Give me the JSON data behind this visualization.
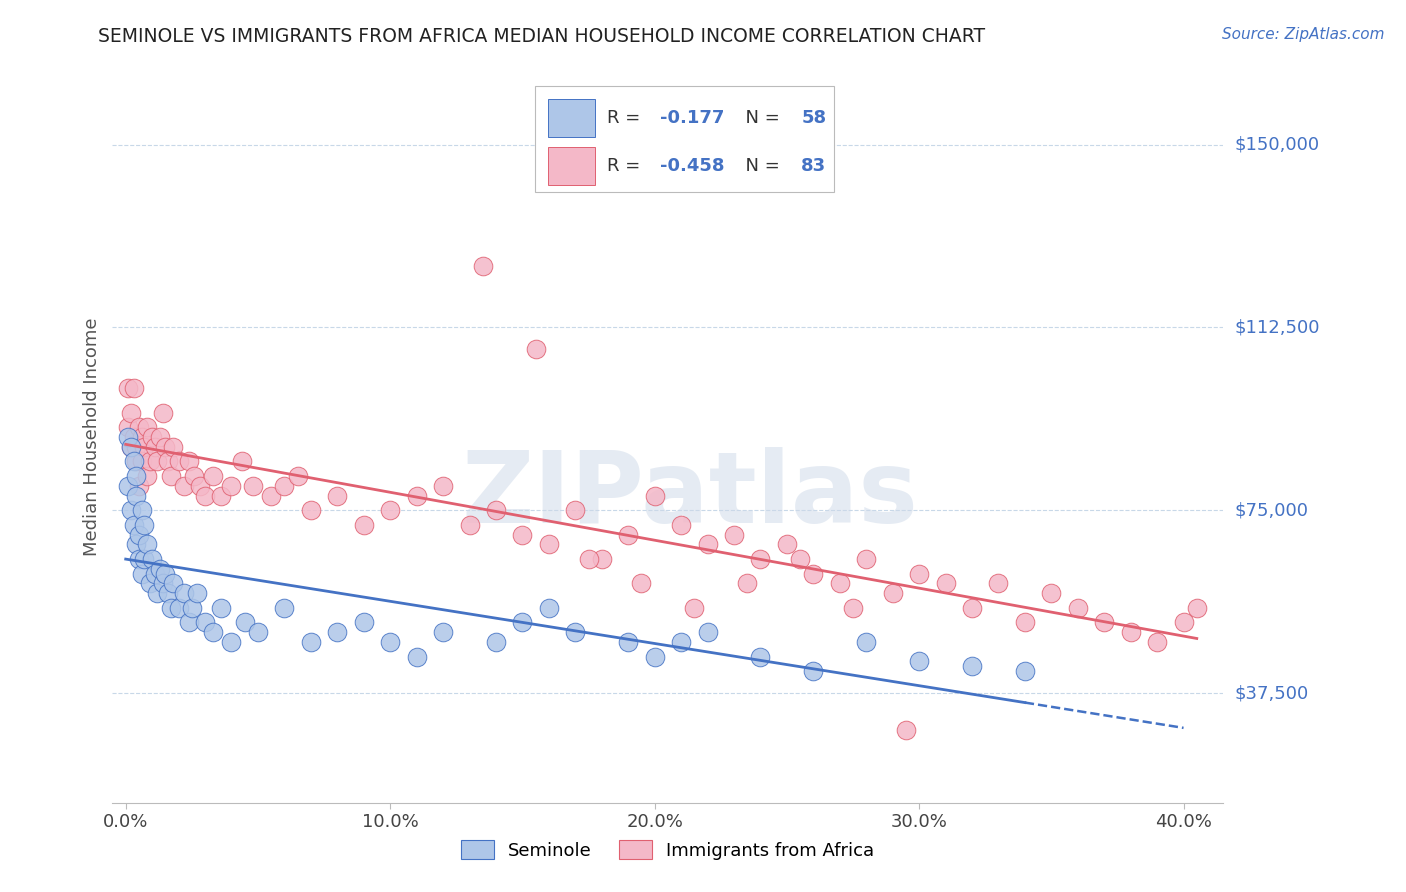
{
  "title": "SEMINOLE VS IMMIGRANTS FROM AFRICA MEDIAN HOUSEHOLD INCOME CORRELATION CHART",
  "source": "Source: ZipAtlas.com",
  "ylabel": "Median Household Income",
  "x_tick_labels": [
    "0.0%",
    "10.0%",
    "20.0%",
    "30.0%",
    "40.0%"
  ],
  "x_tick_positions": [
    0.0,
    0.1,
    0.2,
    0.3,
    0.4
  ],
  "y_tick_labels": [
    "$37,500",
    "$75,000",
    "$112,500",
    "$150,000"
  ],
  "y_tick_values": [
    37500,
    75000,
    112500,
    150000
  ],
  "ylim": [
    15000,
    165000
  ],
  "xlim": [
    -0.005,
    0.415
  ],
  "watermark": "ZIPatlas",
  "legend_blue_label": "Seminole",
  "legend_pink_label": "Immigrants from Africa",
  "blue_R": "-0.177",
  "blue_N": "58",
  "pink_R": "-0.458",
  "pink_N": "83",
  "blue_color": "#aec6e8",
  "pink_color": "#f4b8c8",
  "blue_line_color": "#4472c4",
  "pink_line_color": "#e06070",
  "background_color": "#ffffff",
  "grid_color": "#c8d8e8",
  "seminole_x": [
    0.001,
    0.001,
    0.002,
    0.002,
    0.003,
    0.003,
    0.004,
    0.004,
    0.004,
    0.005,
    0.005,
    0.006,
    0.006,
    0.007,
    0.007,
    0.008,
    0.009,
    0.01,
    0.011,
    0.012,
    0.013,
    0.014,
    0.015,
    0.016,
    0.017,
    0.018,
    0.02,
    0.022,
    0.024,
    0.025,
    0.027,
    0.03,
    0.033,
    0.036,
    0.04,
    0.045,
    0.05,
    0.06,
    0.07,
    0.08,
    0.09,
    0.1,
    0.11,
    0.12,
    0.14,
    0.15,
    0.16,
    0.17,
    0.19,
    0.2,
    0.21,
    0.22,
    0.24,
    0.26,
    0.28,
    0.3,
    0.32,
    0.34
  ],
  "seminole_y": [
    90000,
    80000,
    88000,
    75000,
    85000,
    72000,
    82000,
    68000,
    78000,
    70000,
    65000,
    75000,
    62000,
    72000,
    65000,
    68000,
    60000,
    65000,
    62000,
    58000,
    63000,
    60000,
    62000,
    58000,
    55000,
    60000,
    55000,
    58000,
    52000,
    55000,
    58000,
    52000,
    50000,
    55000,
    48000,
    52000,
    50000,
    55000,
    48000,
    50000,
    52000,
    48000,
    45000,
    50000,
    48000,
    52000,
    55000,
    50000,
    48000,
    45000,
    48000,
    50000,
    45000,
    42000,
    48000,
    44000,
    43000,
    42000
  ],
  "africa_x": [
    0.001,
    0.001,
    0.002,
    0.002,
    0.003,
    0.003,
    0.004,
    0.004,
    0.005,
    0.005,
    0.006,
    0.006,
    0.007,
    0.008,
    0.008,
    0.009,
    0.01,
    0.011,
    0.012,
    0.013,
    0.014,
    0.015,
    0.016,
    0.017,
    0.018,
    0.02,
    0.022,
    0.024,
    0.026,
    0.028,
    0.03,
    0.033,
    0.036,
    0.04,
    0.044,
    0.048,
    0.055,
    0.06,
    0.065,
    0.07,
    0.08,
    0.09,
    0.1,
    0.11,
    0.12,
    0.13,
    0.14,
    0.15,
    0.16,
    0.17,
    0.18,
    0.19,
    0.2,
    0.21,
    0.22,
    0.23,
    0.24,
    0.25,
    0.26,
    0.27,
    0.28,
    0.29,
    0.3,
    0.31,
    0.32,
    0.33,
    0.34,
    0.35,
    0.36,
    0.37,
    0.38,
    0.39,
    0.4,
    0.405,
    0.135,
    0.155,
    0.175,
    0.195,
    0.215,
    0.235,
    0.255,
    0.275,
    0.295
  ],
  "africa_y": [
    100000,
    92000,
    95000,
    88000,
    100000,
    90000,
    88000,
    85000,
    92000,
    80000,
    90000,
    85000,
    88000,
    92000,
    82000,
    85000,
    90000,
    88000,
    85000,
    90000,
    95000,
    88000,
    85000,
    82000,
    88000,
    85000,
    80000,
    85000,
    82000,
    80000,
    78000,
    82000,
    78000,
    80000,
    85000,
    80000,
    78000,
    80000,
    82000,
    75000,
    78000,
    72000,
    75000,
    78000,
    80000,
    72000,
    75000,
    70000,
    68000,
    75000,
    65000,
    70000,
    78000,
    72000,
    68000,
    70000,
    65000,
    68000,
    62000,
    60000,
    65000,
    58000,
    62000,
    60000,
    55000,
    60000,
    52000,
    58000,
    55000,
    52000,
    50000,
    48000,
    52000,
    55000,
    125000,
    108000,
    65000,
    60000,
    55000,
    60000,
    65000,
    55000,
    30000
  ]
}
